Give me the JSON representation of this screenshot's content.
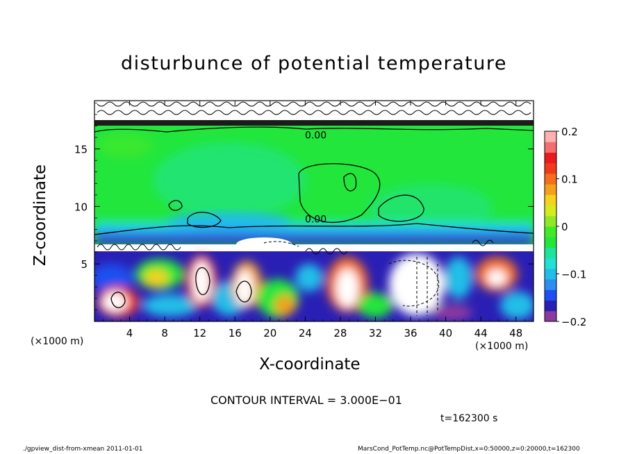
{
  "chart_data": {
    "type": "heatmap",
    "title": "disturbunce of potential temperature",
    "xlabel": "X-coordinate",
    "ylabel": "Z-coordinate",
    "x_unit_left": "(×1000 m)",
    "x_unit_right": "(×1000 m)",
    "xlim": [
      0,
      50
    ],
    "ylim": [
      0,
      19.2
    ],
    "x_ticks": [
      "4",
      "8",
      "12",
      "16",
      "20",
      "24",
      "28",
      "32",
      "36",
      "40",
      "44",
      "48"
    ],
    "y_ticks": [
      "5",
      "10",
      "15"
    ],
    "contour_labels": [
      "0.00",
      "0.00"
    ],
    "colorbar": {
      "range": [
        -0.2,
        0.2
      ],
      "tick_labels": [
        "0.2",
        "0.1",
        "0",
        "−0.1",
        "−0.2"
      ],
      "colors": [
        "#8b3aa0",
        "#2a1fb4",
        "#1f4ff0",
        "#2b8ef0",
        "#22bde8",
        "#22e0d8",
        "#1ee39a",
        "#22e63c",
        "#44e82a",
        "#90e828",
        "#d6ea22",
        "#f4d21e",
        "#f3a01e",
        "#f46e1e",
        "#f03a1e",
        "#e81c1c",
        "#f2706e",
        "#ffb0b0"
      ]
    },
    "contour_interval_text": "CONTOUR INTERVAL = 3.000E−01",
    "time_text": "t=162300 s"
  },
  "footer": {
    "left": "./gpview_dist-from-xmean  2011-01-01",
    "right": "MarsCond_PotTemp.nc@PotTempDist,x=0:50000,z=0:20000,t=162300"
  }
}
